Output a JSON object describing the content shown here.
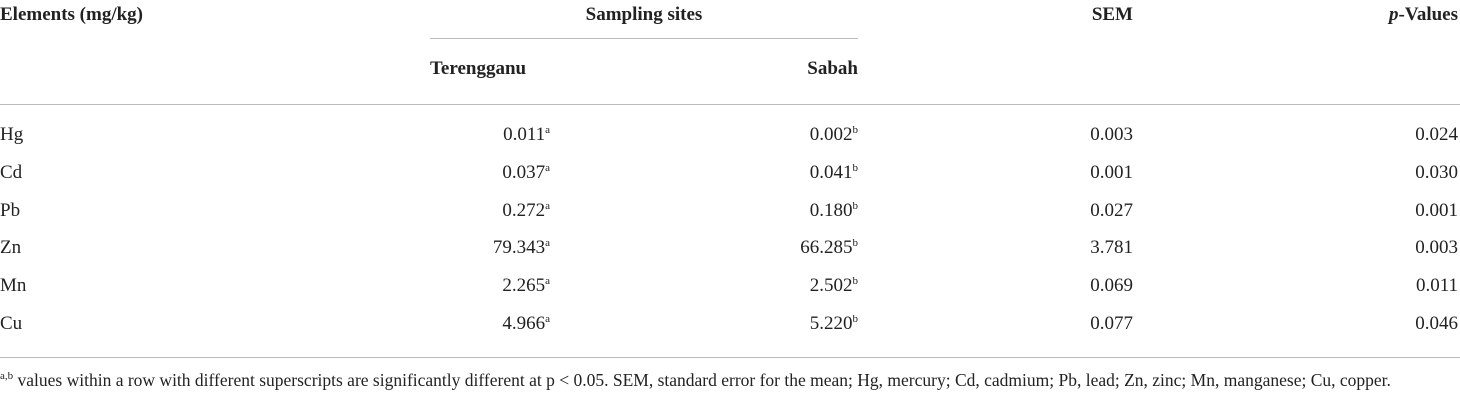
{
  "header": {
    "elements": "Elements (mg/kg)",
    "sampling_sites": "Sampling sites",
    "terengganu": "Terengganu",
    "sabah": "Sabah",
    "sem": "SEM",
    "p_italic": "p",
    "p_rest": "-Values"
  },
  "rows": [
    {
      "element": "Hg",
      "terengganu": "0.011",
      "terengganu_sup": "a",
      "sabah": "0.002",
      "sabah_sup": "b",
      "sem": "0.003",
      "p": "0.024"
    },
    {
      "element": "Cd",
      "terengganu": "0.037",
      "terengganu_sup": "a",
      "sabah": "0.041",
      "sabah_sup": "b",
      "sem": "0.001",
      "p": "0.030"
    },
    {
      "element": "Pb",
      "terengganu": "0.272",
      "terengganu_sup": "a",
      "sabah": "0.180",
      "sabah_sup": "b",
      "sem": "0.027",
      "p": "0.001"
    },
    {
      "element": "Zn",
      "terengganu": "79.343",
      "terengganu_sup": "a",
      "sabah": "66.285",
      "sabah_sup": "b",
      "sem": "3.781",
      "p": "0.003"
    },
    {
      "element": "Mn",
      "terengganu": "2.265",
      "terengganu_sup": "a",
      "sabah": "2.502",
      "sabah_sup": "b",
      "sem": "0.069",
      "p": "0.011"
    },
    {
      "element": "Cu",
      "terengganu": "4.966",
      "terengganu_sup": "a",
      "sabah": "5.220",
      "sabah_sup": "b",
      "sem": "0.077",
      "p": "0.046"
    }
  ],
  "footnote": {
    "sup": "a,b",
    "text": " values within a row with different superscripts are significantly different at p < 0.05. SEM, standard error for the mean; Hg, mercury; Cd, cadmium; Pb, lead; Zn, zinc; Mn, manganese; Cu, copper."
  }
}
